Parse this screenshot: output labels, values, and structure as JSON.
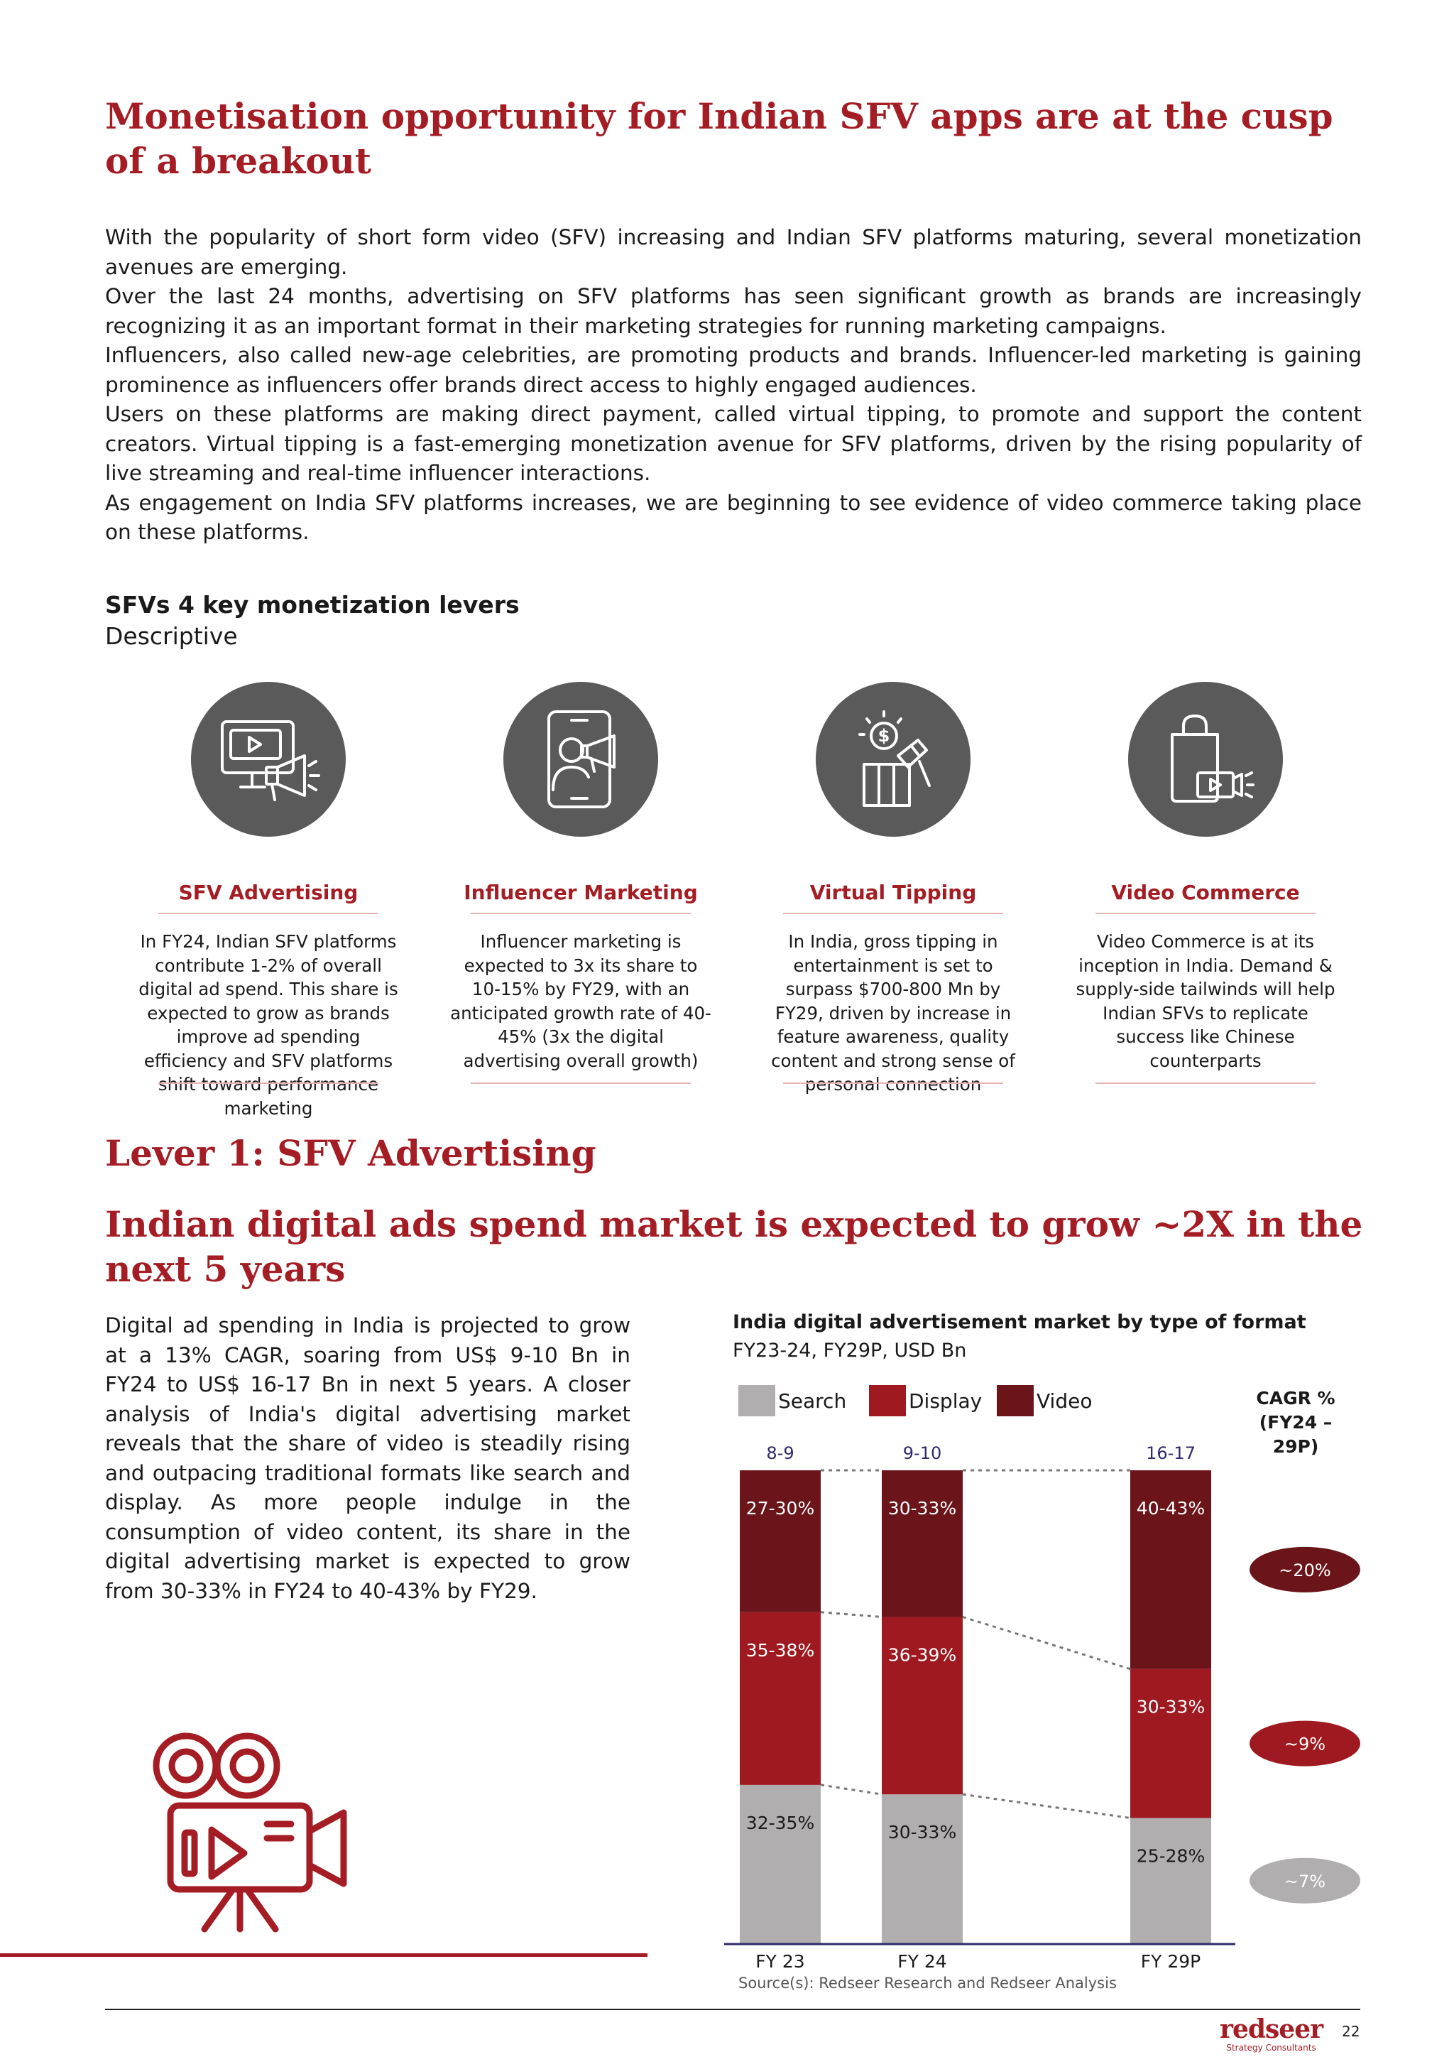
{
  "title": "Monetisation opportunity for Indian SFV apps are at the cusp of a breakout",
  "intro": [
    "With the popularity of short form video (SFV) increasing and Indian SFV platforms maturing, several monetization avenues are emerging.",
    "Over the last 24 months, advertising on SFV platforms has seen significant growth as brands are increasingly recognizing it as an important format in their marketing strategies for running marketing campaigns.",
    "Influencers, also called new-age celebrities, are promoting products and brands. Influencer-led marketing is gaining prominence as influencers offer brands direct access to highly engaged audiences.",
    "Users on these platforms are making direct payment, called virtual tipping, to promote and support the content creators. Virtual tipping is a fast-emerging monetization avenue for SFV platforms, driven by the rising popularity of live streaming and real-time influencer interactions.",
    "As engagement on India SFV platforms increases, we are beginning to see evidence of video commerce taking place on these platforms."
  ],
  "levers_heading": "SFVs 4 key monetization levers",
  "levers_subheading": "Descriptive",
  "levers": [
    {
      "icon": "video-advertising-icon",
      "name": "SFV Advertising",
      "description": "In FY24, Indian SFV platforms contribute 1-2% of overall digital ad spend. This share is expected to grow as brands improve ad spending efficiency and SFV platforms shift toward performance marketing"
    },
    {
      "icon": "influencer-phone-megaphone-icon",
      "name": "Influencer Marketing",
      "description": "Influencer marketing is expected to 3x its share to 10-15% by FY29, with an anticipated growth rate of 40-45% (3x the digital advertising overall growth)"
    },
    {
      "icon": "gift-dollar-icon",
      "name": "Virtual Tipping",
      "description": "In India, gross tipping in entertainment is set to surpass $700-800 Mn by FY29, driven by increase in feature awareness, quality content and strong sense of personal connection"
    },
    {
      "icon": "shopping-bag-video-icon",
      "name": "Video Commerce",
      "description": "Video Commerce is at its inception in India. Demand & supply-side tailwinds will help Indian SFVs to replicate success like Chinese counterparts"
    }
  ],
  "lever1_title": "Lever 1: SFV Advertising",
  "section2_title": "Indian digital ads spend market is expected to grow ~2X in the next 5 years",
  "section2_body": "Digital ad spending in India is projected to grow at a 13% CAGR, soaring from US$ 9-10 Bn in FY24 to US$ 16-17 Bn in next 5 years. A closer analysis of India's digital advertising market reveals that the share of video is steadily rising and outpacing traditional formats like search and display. As more people indulge in the consumption of video content, its share in the digital advertising market is expected to grow from 30-33% in FY24 to 40-43% by FY29.",
  "chart_data": {
    "type": "bar",
    "stacked": true,
    "normalized": true,
    "title": "India digital advertisement market by type of format",
    "subtitle": "FY23-24, FY29P, USD Bn",
    "categories": [
      "FY 23",
      "FY 24",
      "FY 29P"
    ],
    "totals": [
      "8-9",
      "9-10",
      "16-17"
    ],
    "series": [
      {
        "name": "Search",
        "color": "#b0aeae",
        "labels": [
          "32-35%",
          "30-33%",
          "25-28%"
        ],
        "values": [
          33.5,
          31.5,
          26.5
        ]
      },
      {
        "name": "Display",
        "color": "#9e1a20",
        "labels": [
          "35-38%",
          "36-39%",
          "30-33%"
        ],
        "values": [
          36.5,
          37.5,
          31.5
        ]
      },
      {
        "name": "Video",
        "color": "#6b151b",
        "labels": [
          "27-30%",
          "30-33%",
          "40-43%"
        ],
        "values": [
          30.0,
          31.0,
          42.0
        ]
      }
    ],
    "cagr_header": "CAGR %\n(FY24 – 29P)",
    "cagr": [
      {
        "series": "Video",
        "label": "~20%",
        "color": "#6b151b"
      },
      {
        "series": "Display",
        "label": "~9%",
        "color": "#9e1a20"
      },
      {
        "series": "Search",
        "label": "~7%",
        "color": "#b0aeae"
      }
    ]
  },
  "source": "Source(s): Redseer Research and Redseer Analysis",
  "brand": {
    "name": "redseer",
    "tagline": "Strategy Consultants"
  },
  "page_number": "22",
  "colors": {
    "accent": "#a51d24",
    "dark_red": "#6b151b",
    "gray_circle": "#5a5a5a"
  }
}
